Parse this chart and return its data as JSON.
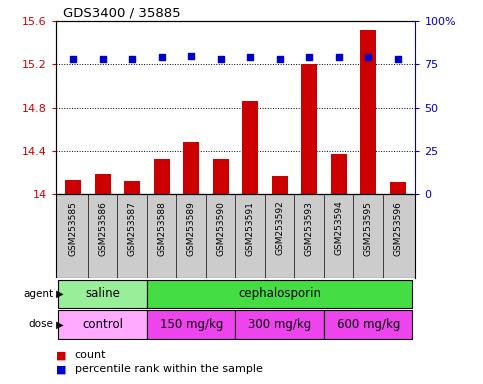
{
  "title": "GDS3400 / 35885",
  "samples": [
    "GSM253585",
    "GSM253586",
    "GSM253587",
    "GSM253588",
    "GSM253589",
    "GSM253590",
    "GSM253591",
    "GSM253592",
    "GSM253593",
    "GSM253594",
    "GSM253595",
    "GSM253596"
  ],
  "bar_values": [
    14.13,
    14.18,
    14.12,
    14.32,
    14.48,
    14.32,
    14.86,
    14.17,
    15.2,
    14.37,
    15.52,
    14.11
  ],
  "dot_values": [
    78,
    78,
    78,
    79,
    80,
    78,
    79,
    78,
    79,
    79,
    79,
    78
  ],
  "bar_color": "#cc0000",
  "dot_color": "#0000cc",
  "ylim_left": [
    14.0,
    15.6
  ],
  "ylim_right": [
    0,
    100
  ],
  "yticks_left": [
    14.0,
    14.4,
    14.8,
    15.2,
    15.6
  ],
  "yticks_right": [
    0,
    25,
    50,
    75,
    100
  ],
  "ytick_labels_left": [
    "14",
    "14.4",
    "14.8",
    "15.2",
    "15.6"
  ],
  "ytick_labels_right": [
    "0",
    "25",
    "50",
    "75",
    "100%"
  ],
  "agent_labels": [
    {
      "text": "saline",
      "start": 0,
      "end": 3,
      "color": "#99ee99"
    },
    {
      "text": "cephalosporin",
      "start": 3,
      "end": 12,
      "color": "#44dd44"
    }
  ],
  "dose_labels": [
    {
      "text": "control",
      "start": 0,
      "end": 3,
      "color": "#ffaaff"
    },
    {
      "text": "150 mg/kg",
      "start": 3,
      "end": 6,
      "color": "#ee44ee"
    },
    {
      "text": "300 mg/kg",
      "start": 6,
      "end": 9,
      "color": "#ee44ee"
    },
    {
      "text": "600 mg/kg",
      "start": 9,
      "end": 12,
      "color": "#ee44ee"
    }
  ],
  "legend_count_color": "#cc0000",
  "legend_dot_color": "#0000cc",
  "bar_width": 0.55,
  "background_color": "#ffffff",
  "plot_bg_color": "#ffffff",
  "sample_bg_color": "#cccccc"
}
